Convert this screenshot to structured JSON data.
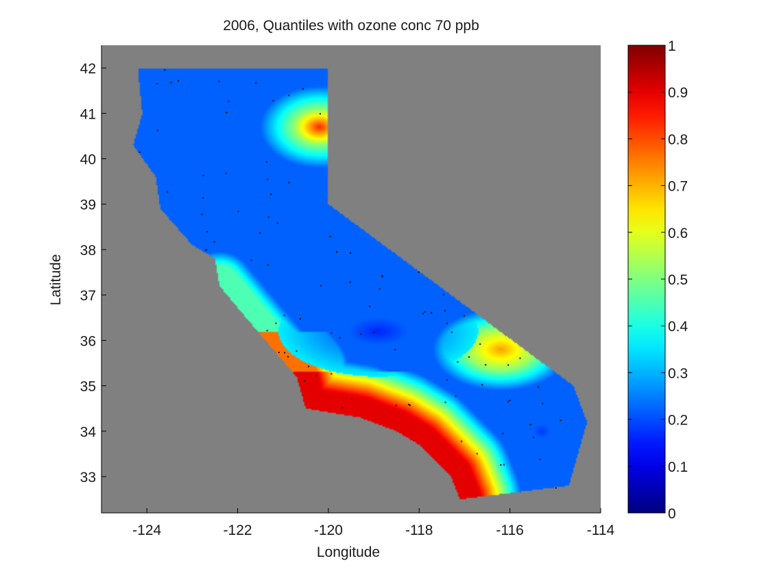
{
  "chart_data": {
    "type": "heatmap",
    "title": "2006, Quantiles with ozone conc 70 ppb",
    "xlabel": "Longitude",
    "ylabel": "Latitude",
    "xlim": [
      -125,
      -114
    ],
    "ylim": [
      32.2,
      42.5
    ],
    "x_ticks": [
      -124,
      -122,
      -120,
      -118,
      -116,
      -114
    ],
    "y_ticks": [
      33,
      34,
      35,
      36,
      37,
      38,
      39,
      40,
      41,
      42
    ],
    "x_tick_labels": [
      "-124",
      "-122",
      "-120",
      "-118",
      "-116",
      "-114"
    ],
    "y_tick_labels": [
      "33",
      "34",
      "35",
      "36",
      "37",
      "38",
      "39",
      "40",
      "41",
      "42"
    ],
    "colorbar": {
      "colormap": "jet",
      "range": [
        0,
        1
      ],
      "ticks": [
        0,
        0.1,
        0.2,
        0.3,
        0.4,
        0.5,
        0.6,
        0.7,
        0.8,
        0.9,
        1
      ],
      "tick_labels": [
        "0",
        "0.1",
        "0.2",
        "0.3",
        "0.4",
        "0.5",
        "0.6",
        "0.7",
        "0.8",
        "0.9",
        "1"
      ]
    },
    "background_color": "#808080",
    "region": "California",
    "boundary": [
      [
        -124.2,
        42.0
      ],
      [
        -120.0,
        42.0
      ],
      [
        -120.0,
        39.0
      ],
      [
        -114.6,
        35.0
      ],
      [
        -114.3,
        34.2
      ],
      [
        -114.7,
        32.8
      ],
      [
        -117.1,
        32.5
      ],
      [
        -117.3,
        33.0
      ],
      [
        -118.0,
        33.7
      ],
      [
        -118.5,
        34.0
      ],
      [
        -119.3,
        34.3
      ],
      [
        -120.5,
        34.5
      ],
      [
        -120.7,
        35.2
      ],
      [
        -121.3,
        35.9
      ],
      [
        -121.9,
        36.6
      ],
      [
        -122.4,
        37.2
      ],
      [
        -122.5,
        37.8
      ],
      [
        -123.0,
        38.1
      ],
      [
        -123.7,
        38.9
      ],
      [
        -123.8,
        39.6
      ],
      [
        -124.3,
        40.3
      ],
      [
        -124.1,
        41.0
      ],
      [
        -124.2,
        42.0
      ]
    ],
    "field_features": [
      {
        "description": "high hotspot (northeast)",
        "lon": -120.2,
        "lat": 40.7,
        "value": 0.82
      },
      {
        "description": "moderate hotspot (Mojave)",
        "lon": -116.2,
        "lat": 35.8,
        "value": 0.7
      },
      {
        "description": "Central Valley low",
        "lon": -119.5,
        "lat": 37.5,
        "value": 0.18
      },
      {
        "description": "southeast desert low",
        "lon": -115.3,
        "lat": 34.0,
        "value": 0.2
      },
      {
        "description": "southern coastal band",
        "lon": -118.5,
        "lat": 34.3,
        "value": 0.88
      }
    ]
  }
}
